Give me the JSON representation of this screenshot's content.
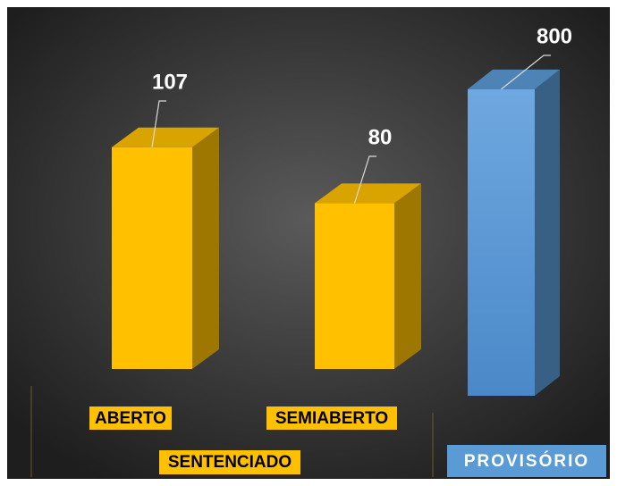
{
  "chart_data": {
    "type": "bar3d",
    "categories": [
      "ABERTO",
      "SEMIABERTO",
      "PROVISÓRIO"
    ],
    "group_label": "SENTENCIADO",
    "series": [
      {
        "color": "#ffc000",
        "values": [
          107,
          80,
          null
        ]
      },
      {
        "color": "#5b9bd5",
        "values": [
          null,
          null,
          800
        ],
        "axis": "y2"
      }
    ],
    "ylim": [
      0,
      150
    ],
    "y2lim": [
      0,
      900
    ]
  }
}
